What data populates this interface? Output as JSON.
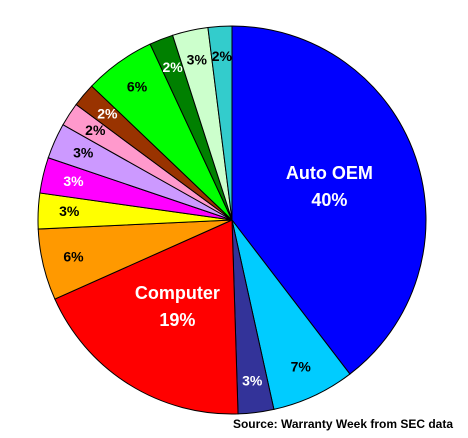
{
  "chart_data": {
    "type": "pie",
    "source": "Source: Warranty Week from SEC data",
    "categories": [
      "Auto OEM",
      null,
      null,
      "Computer",
      null,
      null,
      null,
      null,
      null,
      null,
      null,
      null,
      null,
      null
    ],
    "values": [
      40,
      7,
      3,
      19,
      6,
      3,
      3,
      3,
      2,
      2,
      6,
      2,
      3,
      2
    ],
    "value_labels": [
      "40%",
      "7%",
      "3%",
      "19%",
      "6%",
      "3%",
      "3%",
      "3%",
      "2%",
      "2%",
      "6%",
      "2%",
      "3%",
      "2%"
    ],
    "colors": [
      "#0000ff",
      "#00ccff",
      "#333399",
      "#ff0000",
      "#ff9900",
      "#ffff00",
      "#ff00ff",
      "#cc99ff",
      "#ff99cc",
      "#993300",
      "#00ff00",
      "#008000",
      "#ccffcc",
      "#33cccc"
    ]
  }
}
